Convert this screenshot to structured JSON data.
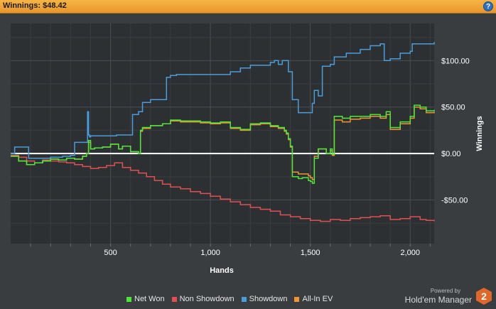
{
  "header": {
    "title": "Winnings: $48.42",
    "help_label": "?"
  },
  "brand": {
    "powered": "Powered by",
    "name": "Hold'em Manager",
    "logo": "2"
  },
  "chart_data": {
    "type": "line",
    "xlabel": "Hands",
    "ylabel": "Winnings",
    "xlim": [
      0,
      2120
    ],
    "ylim": [
      -97,
      140
    ],
    "x_ticks": [
      500,
      1000,
      1500,
      2000
    ],
    "x_tick_labels": [
      "500",
      "1,000",
      "1,500",
      "2,000"
    ],
    "y_ticks": [
      100,
      50,
      0,
      -50
    ],
    "y_tick_labels": [
      "$100.00",
      "$50.00",
      "$0.00",
      "-$50.00"
    ],
    "grid": true,
    "legend_position": "bottom",
    "series": [
      {
        "name": "Net Won",
        "color": "#4be83a",
        "x": [
          0,
          40,
          80,
          120,
          160,
          200,
          240,
          280,
          320,
          360,
          380,
          390,
          400,
          420,
          460,
          500,
          540,
          560,
          600,
          640,
          650,
          660,
          700,
          760,
          800,
          850,
          900,
          950,
          1000,
          1050,
          1080,
          1100,
          1150,
          1200,
          1250,
          1300,
          1340,
          1370,
          1380,
          1390,
          1400,
          1410,
          1440,
          1460,
          1490,
          1500,
          1510,
          1520,
          1540,
          1560,
          1580,
          1600,
          1610,
          1620,
          1660,
          1700,
          1750,
          1800,
          1850,
          1880,
          1900,
          1950,
          2000,
          2020,
          2050,
          2080,
          2120
        ],
        "y": [
          -3,
          -8,
          -12,
          -10,
          -8,
          -6,
          -7,
          -5,
          -6,
          -3,
          0,
          14,
          5,
          6,
          7,
          10,
          5,
          8,
          2,
          0,
          25,
          28,
          30,
          32,
          36,
          35,
          35,
          34,
          33,
          34,
          34,
          28,
          26,
          32,
          33,
          30,
          28,
          25,
          22,
          16,
          8,
          -25,
          -27,
          -26,
          -29,
          -30,
          -32,
          -5,
          5,
          5,
          0,
          5,
          -1,
          40,
          38,
          40,
          40,
          42,
          40,
          45,
          28,
          34,
          40,
          52,
          50,
          46,
          47
        ]
      },
      {
        "name": "Non Showdown",
        "color": "#e05050",
        "x": [
          0,
          40,
          80,
          120,
          160,
          200,
          240,
          280,
          320,
          360,
          400,
          440,
          480,
          520,
          560,
          600,
          640,
          680,
          720,
          760,
          800,
          850,
          900,
          950,
          1000,
          1050,
          1100,
          1150,
          1200,
          1250,
          1300,
          1350,
          1400,
          1450,
          1500,
          1550,
          1600,
          1650,
          1700,
          1750,
          1800,
          1850,
          1900,
          1950,
          2000,
          2050,
          2080,
          2120
        ],
        "y": [
          -2,
          -4,
          -8,
          -10,
          -7,
          -8,
          -9,
          -10,
          -12,
          -14,
          -16,
          -15,
          -13,
          -10,
          -15,
          -18,
          -21,
          -25,
          -29,
          -33,
          -36,
          -38,
          -41,
          -43,
          -46,
          -49,
          -52,
          -55,
          -58,
          -60,
          -62,
          -66,
          -68,
          -70,
          -72,
          -73,
          -71,
          -72,
          -70,
          -69,
          -68,
          -67,
          -71,
          -70,
          -68,
          -71,
          -72,
          -73
        ]
      },
      {
        "name": "Showdown",
        "color": "#4a9ddb",
        "x": [
          0,
          20,
          70,
          90,
          160,
          200,
          260,
          300,
          320,
          380,
          385,
          390,
          395,
          400,
          500,
          530,
          560,
          600,
          610,
          620,
          640,
          660,
          700,
          780,
          800,
          830,
          900,
          1000,
          1100,
          1150,
          1200,
          1250,
          1300,
          1320,
          1340,
          1360,
          1370,
          1390,
          1410,
          1440,
          1460,
          1480,
          1500,
          1510,
          1520,
          1530,
          1540,
          1550,
          1560,
          1600,
          1620,
          1640,
          1680,
          1750,
          1800,
          1850,
          1870,
          1900,
          1950,
          2000,
          2010,
          2120
        ],
        "y": [
          0,
          7,
          7,
          -5,
          -5,
          -4,
          -3,
          -2,
          12,
          12,
          45,
          20,
          18,
          19,
          19,
          20,
          20,
          20,
          42,
          42,
          45,
          55,
          58,
          82,
          84,
          85,
          85,
          85,
          88,
          92,
          95,
          95,
          98,
          100,
          96,
          100,
          100,
          88,
          58,
          44,
          44,
          44,
          44,
          54,
          68,
          68,
          62,
          62,
          94,
          96,
          104,
          104,
          108,
          112,
          116,
          118,
          100,
          102,
          108,
          110,
          118,
          120
        ]
      },
      {
        "name": "All-In EV",
        "color": "#f0962e",
        "x": [
          0,
          40,
          80,
          120,
          160,
          200,
          240,
          280,
          320,
          360,
          380,
          390,
          400,
          420,
          460,
          500,
          540,
          560,
          600,
          640,
          650,
          660,
          700,
          760,
          800,
          850,
          900,
          950,
          1000,
          1050,
          1080,
          1100,
          1150,
          1200,
          1250,
          1300,
          1340,
          1370,
          1380,
          1390,
          1400,
          1410,
          1440,
          1460,
          1490,
          1500,
          1510,
          1520,
          1540,
          1560,
          1580,
          1600,
          1610,
          1620,
          1660,
          1700,
          1750,
          1800,
          1850,
          1880,
          1900,
          1950,
          2000,
          2020,
          2050,
          2080,
          2120
        ],
        "y": [
          -3,
          -8,
          -12,
          -10,
          -8,
          -6,
          -7,
          -5,
          -6,
          -3,
          0,
          12,
          5,
          6,
          7,
          10,
          5,
          8,
          2,
          0,
          24,
          27,
          30,
          32,
          35,
          34,
          34,
          33,
          32,
          33,
          33,
          27,
          25,
          31,
          32,
          29,
          27,
          24,
          21,
          15,
          7,
          -20,
          -22,
          -22,
          -24,
          -26,
          -28,
          -3,
          5,
          5,
          0,
          3,
          -2,
          36,
          34,
          37,
          38,
          40,
          38,
          42,
          26,
          32,
          38,
          50,
          48,
          44,
          45
        ]
      }
    ],
    "zero_line": 0
  }
}
